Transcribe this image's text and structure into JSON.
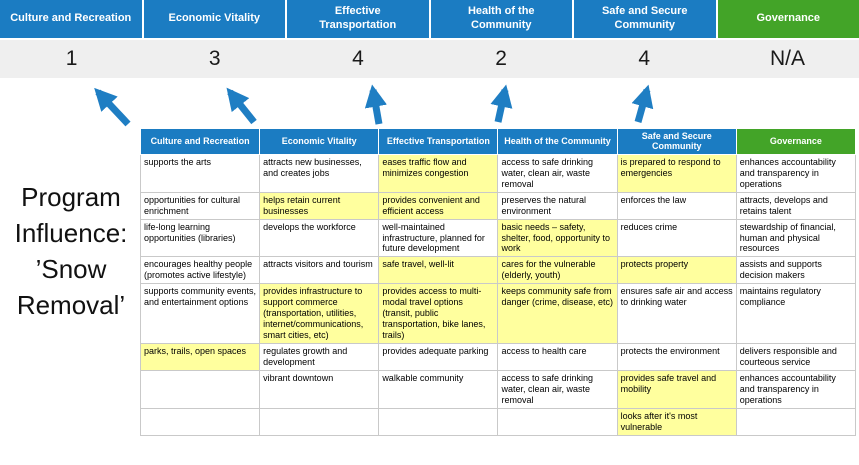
{
  "title": "Program Influence: ’Snow Removal’",
  "colors": {
    "pillar_blue": "#1b7cc2",
    "governance_green": "#43a428",
    "highlight_yellow": "#ffff9e",
    "arrow_blue": "#1f7ec3",
    "score_bg": "#efefef"
  },
  "scoreband": {
    "columns": [
      {
        "label": "Culture and Recreation",
        "score": "1"
      },
      {
        "label": "Economic Vitality",
        "score": "3"
      },
      {
        "label": "Effective Transportation",
        "score": "4"
      },
      {
        "label": "Health of the Community",
        "score": "2"
      },
      {
        "label": "Safe and Secure Community",
        "score": "4"
      },
      {
        "label": "Governance",
        "score": "N/A"
      }
    ]
  },
  "matrix": {
    "headers": [
      "Culture and Recreation",
      "Economic Vitality",
      "Effective Transportation",
      "Health of the Community",
      "Safe and Secure Community",
      "Governance"
    ],
    "rows": [
      [
        {
          "text": "supports the arts",
          "highlight": false
        },
        {
          "text": "attracts new businesses, and creates jobs",
          "highlight": false
        },
        {
          "text": "eases traffic flow and minimizes congestion",
          "highlight": true
        },
        {
          "text": "access to safe drinking water, clean air, waste removal",
          "highlight": false
        },
        {
          "text": "is prepared to respond to emergencies",
          "highlight": true
        },
        {
          "text": "enhances accountability and transparency in operations",
          "highlight": false
        }
      ],
      [
        {
          "text": "opportunities for cultural enrichment",
          "highlight": false
        },
        {
          "text": "helps retain current businesses",
          "highlight": true
        },
        {
          "text": "provides convenient and efficient access",
          "highlight": true
        },
        {
          "text": "preserves the natural environment",
          "highlight": false
        },
        {
          "text": "enforces the law",
          "highlight": false
        },
        {
          "text": "attracts, develops and retains talent",
          "highlight": false
        }
      ],
      [
        {
          "text": "life-long learning opportunities (libraries)",
          "highlight": false
        },
        {
          "text": "develops the workforce",
          "highlight": false
        },
        {
          "text": "well-maintained infrastructure, planned for future development",
          "highlight": false
        },
        {
          "text": "basic needs – safety, shelter, food, opportunity to work",
          "highlight": true
        },
        {
          "text": "reduces crime",
          "highlight": false
        },
        {
          "text": "stewardship of financial, human and physical resources",
          "highlight": false
        }
      ],
      [
        {
          "text": "encourages healthy people (promotes active lifestyle)",
          "highlight": false
        },
        {
          "text": "attracts visitors and tourism",
          "highlight": false
        },
        {
          "text": "safe travel, well-lit",
          "highlight": true
        },
        {
          "text": "cares for the vulnerable (elderly, youth)",
          "highlight": true
        },
        {
          "text": "protects property",
          "highlight": true
        },
        {
          "text": "assists and supports decision makers",
          "highlight": false
        }
      ],
      [
        {
          "text": "supports community events, and entertainment options",
          "highlight": false
        },
        {
          "text": "provides infrastructure to support commerce (transportation, utilities, internet/communications, smart cities, etc)",
          "highlight": true
        },
        {
          "text": "provides access to multi-modal travel options (transit, public transportation, bike lanes, trails)",
          "highlight": true
        },
        {
          "text": "keeps community safe from danger (crime, disease, etc)",
          "highlight": true
        },
        {
          "text": "ensures safe air and access to drinking water",
          "highlight": false
        },
        {
          "text": "maintains regulatory compliance",
          "highlight": false
        }
      ],
      [
        {
          "text": "parks, trails, open spaces",
          "highlight": true
        },
        {
          "text": "regulates growth and development",
          "highlight": false
        },
        {
          "text": "provides adequate parking",
          "highlight": false
        },
        {
          "text": "access to health care",
          "highlight": false
        },
        {
          "text": "protects the environment",
          "highlight": false
        },
        {
          "text": "delivers responsible and courteous service",
          "highlight": false
        }
      ],
      [
        {
          "text": "",
          "highlight": false
        },
        {
          "text": "vibrant downtown",
          "highlight": false
        },
        {
          "text": "walkable community",
          "highlight": false
        },
        {
          "text": "access to safe drinking water, clean air, waste removal",
          "highlight": false
        },
        {
          "text": "provides safe travel and mobility",
          "highlight": true
        },
        {
          "text": "enhances accountability and transparency in operations",
          "highlight": false
        }
      ],
      [
        {
          "text": "",
          "highlight": false
        },
        {
          "text": "",
          "highlight": false
        },
        {
          "text": "",
          "highlight": false
        },
        {
          "text": "",
          "highlight": false
        },
        {
          "text": "looks after it's most vulnerable",
          "highlight": true
        },
        {
          "text": "",
          "highlight": false
        }
      ]
    ]
  }
}
